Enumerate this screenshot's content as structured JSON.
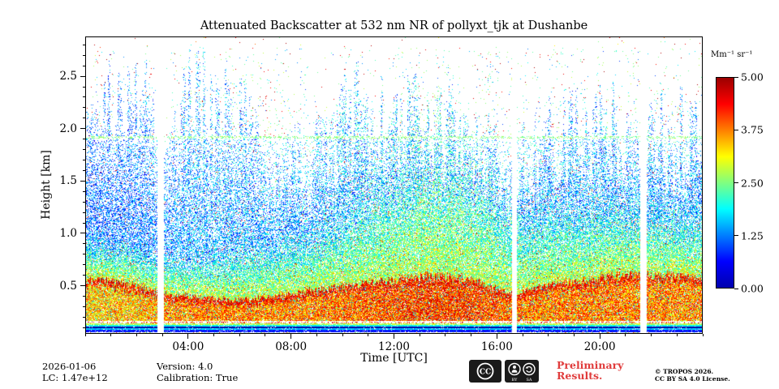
{
  "chart_data": {
    "type": "heatmap",
    "title": "Attenuated Backscatter at 532 nm NR of pollyxt_tjk at Dushanbe",
    "xlabel": "Time [UTC]",
    "ylabel": "Height [km]",
    "x_range_hours": [
      0,
      24
    ],
    "x_major_ticks": [
      {
        "hour": 4,
        "label": "04:00"
      },
      {
        "hour": 8,
        "label": "08:00"
      },
      {
        "hour": 12,
        "label": "12:00"
      },
      {
        "hour": 16,
        "label": "16:00"
      },
      {
        "hour": 20,
        "label": "20:00"
      }
    ],
    "x_minor_tick_interval_hours": 1,
    "y_range_km": [
      0.04,
      2.88
    ],
    "y_major_ticks": [
      {
        "km": 0.5,
        "label": "0.5"
      },
      {
        "km": 1.0,
        "label": "1.0"
      },
      {
        "km": 1.5,
        "label": "1.5"
      },
      {
        "km": 2.0,
        "label": "2.0"
      },
      {
        "km": 2.5,
        "label": "2.5"
      }
    ],
    "y_minor_tick_interval_km": 0.1,
    "colorbar": {
      "label": "Mm⁻¹ sr⁻¹",
      "range": [
        0,
        5
      ],
      "colormap": "jet",
      "ticks": [
        {
          "value": 0.0,
          "label": "0.00"
        },
        {
          "value": 1.25,
          "label": "1.25"
        },
        {
          "value": 2.5,
          "label": "2.50"
        },
        {
          "value": 3.75,
          "label": "3.75"
        },
        {
          "value": 5.0,
          "label": "5.00"
        }
      ],
      "legend_position": "right"
    },
    "grid": false,
    "data_gaps_hours": [
      [
        2.78,
        3.02
      ],
      [
        16.58,
        16.78
      ],
      [
        21.58,
        21.84
      ]
    ],
    "near_range_limit_km": 1.92,
    "overlap_band_km": [
      0.05,
      0.15
    ],
    "aerosol_profile": [
      {
        "t": 0.0,
        "surface_top_km": 0.55,
        "mixed_top_km": 1.0,
        "plume_top_km": 2.0,
        "intensity": 0.35
      },
      {
        "t": 1.5,
        "surface_top_km": 0.52,
        "mixed_top_km": 0.95,
        "plume_top_km": 2.3,
        "intensity": 0.38
      },
      {
        "t": 3.0,
        "surface_top_km": 0.42,
        "mixed_top_km": 0.8,
        "plume_top_km": 2.2,
        "intensity": 0.5
      },
      {
        "t": 4.5,
        "surface_top_km": 0.38,
        "mixed_top_km": 0.75,
        "plume_top_km": 2.2,
        "intensity": 0.62
      },
      {
        "t": 6.0,
        "surface_top_km": 0.36,
        "mixed_top_km": 0.8,
        "plume_top_km": 2.1,
        "intensity": 0.62
      },
      {
        "t": 7.5,
        "surface_top_km": 0.4,
        "mixed_top_km": 0.9,
        "plume_top_km": 1.55,
        "intensity": 0.58
      },
      {
        "t": 9.0,
        "surface_top_km": 0.45,
        "mixed_top_km": 1.0,
        "plume_top_km": 1.75,
        "intensity": 0.62
      },
      {
        "t": 10.5,
        "surface_top_km": 0.5,
        "mixed_top_km": 1.15,
        "plume_top_km": 2.2,
        "intensity": 0.72
      },
      {
        "t": 12.0,
        "surface_top_km": 0.55,
        "mixed_top_km": 1.3,
        "plume_top_km": 2.15,
        "intensity": 0.82
      },
      {
        "t": 13.5,
        "surface_top_km": 0.6,
        "mixed_top_km": 1.45,
        "plume_top_km": 2.05,
        "intensity": 0.9
      },
      {
        "t": 15.0,
        "surface_top_km": 0.55,
        "mixed_top_km": 1.35,
        "plume_top_km": 1.95,
        "intensity": 0.85
      },
      {
        "t": 16.5,
        "surface_top_km": 0.42,
        "mixed_top_km": 1.1,
        "plume_top_km": 1.7,
        "intensity": 0.72
      },
      {
        "t": 18.0,
        "surface_top_km": 0.5,
        "mixed_top_km": 1.15,
        "plume_top_km": 1.9,
        "intensity": 0.62
      },
      {
        "t": 19.5,
        "surface_top_km": 0.55,
        "mixed_top_km": 1.2,
        "plume_top_km": 1.95,
        "intensity": 0.65
      },
      {
        "t": 21.0,
        "surface_top_km": 0.6,
        "mixed_top_km": 1.25,
        "plume_top_km": 1.9,
        "intensity": 0.62
      },
      {
        "t": 22.5,
        "surface_top_km": 0.6,
        "mixed_top_km": 1.2,
        "plume_top_km": 1.9,
        "intensity": 0.6
      },
      {
        "t": 24.0,
        "surface_top_km": 0.55,
        "mixed_top_km": 1.15,
        "plume_top_km": 1.9,
        "intensity": 0.57
      }
    ],
    "description": "Dense near-surface aerosol layer (3-5 Mm-1 sr-1, orange/red) below ~0.6 km all day; mixed aerosol (cyan/green/yellow) up to ~1.0-1.5 km peaking around 12:00-15:00 UTC; sparse particles up to ~2.7 km; three vertical white data gaps near 02:50, 16:40 and 21:40 UTC; multicoloured overlap stripe band near 0.1 km."
  },
  "footer": {
    "date": "2026-01-06",
    "lc": "LC: 1.47e+12",
    "version": "Version: 4.0",
    "calibration": "Calibration: True",
    "preliminary_1": "Preliminary",
    "preliminary_2": "Results.",
    "copyright_1": "© TROPOS 2026.",
    "copyright_2": "CC BY SA 4.0 License.",
    "badge": {
      "cc": "CC",
      "by": "BY",
      "sa": "SA"
    }
  },
  "colors": {
    "preliminary_red": "#e03c3c",
    "axis": "#000000",
    "background": "#ffffff"
  }
}
